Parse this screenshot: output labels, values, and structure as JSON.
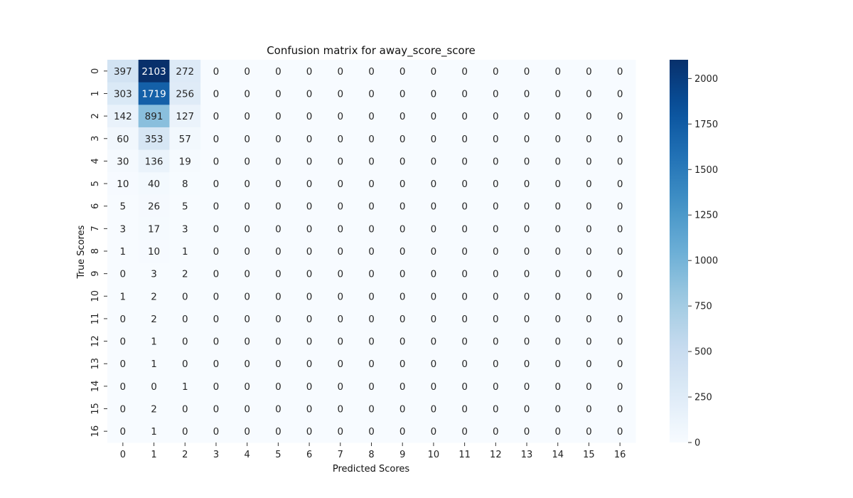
{
  "chart_data": {
    "type": "heatmap",
    "title": "Confusion matrix for away_score_score",
    "xlabel": "Predicted Scores",
    "ylabel": "True Scores",
    "x_categories": [
      "0",
      "1",
      "2",
      "3",
      "4",
      "5",
      "6",
      "7",
      "8",
      "9",
      "10",
      "11",
      "12",
      "13",
      "14",
      "15",
      "16"
    ],
    "y_categories": [
      "0",
      "1",
      "2",
      "3",
      "4",
      "5",
      "6",
      "7",
      "8",
      "9",
      "10",
      "11",
      "12",
      "13",
      "14",
      "15",
      "16"
    ],
    "values": [
      [
        397,
        2103,
        272,
        0,
        0,
        0,
        0,
        0,
        0,
        0,
        0,
        0,
        0,
        0,
        0,
        0,
        0
      ],
      [
        303,
        1719,
        256,
        0,
        0,
        0,
        0,
        0,
        0,
        0,
        0,
        0,
        0,
        0,
        0,
        0,
        0
      ],
      [
        142,
        891,
        127,
        0,
        0,
        0,
        0,
        0,
        0,
        0,
        0,
        0,
        0,
        0,
        0,
        0,
        0
      ],
      [
        60,
        353,
        57,
        0,
        0,
        0,
        0,
        0,
        0,
        0,
        0,
        0,
        0,
        0,
        0,
        0,
        0
      ],
      [
        30,
        136,
        19,
        0,
        0,
        0,
        0,
        0,
        0,
        0,
        0,
        0,
        0,
        0,
        0,
        0,
        0
      ],
      [
        10,
        40,
        8,
        0,
        0,
        0,
        0,
        0,
        0,
        0,
        0,
        0,
        0,
        0,
        0,
        0,
        0
      ],
      [
        5,
        26,
        5,
        0,
        0,
        0,
        0,
        0,
        0,
        0,
        0,
        0,
        0,
        0,
        0,
        0,
        0
      ],
      [
        3,
        17,
        3,
        0,
        0,
        0,
        0,
        0,
        0,
        0,
        0,
        0,
        0,
        0,
        0,
        0,
        0
      ],
      [
        1,
        10,
        1,
        0,
        0,
        0,
        0,
        0,
        0,
        0,
        0,
        0,
        0,
        0,
        0,
        0,
        0
      ],
      [
        0,
        3,
        2,
        0,
        0,
        0,
        0,
        0,
        0,
        0,
        0,
        0,
        0,
        0,
        0,
        0,
        0
      ],
      [
        1,
        2,
        0,
        0,
        0,
        0,
        0,
        0,
        0,
        0,
        0,
        0,
        0,
        0,
        0,
        0,
        0
      ],
      [
        0,
        2,
        0,
        0,
        0,
        0,
        0,
        0,
        0,
        0,
        0,
        0,
        0,
        0,
        0,
        0,
        0
      ],
      [
        0,
        1,
        0,
        0,
        0,
        0,
        0,
        0,
        0,
        0,
        0,
        0,
        0,
        0,
        0,
        0,
        0
      ],
      [
        0,
        1,
        0,
        0,
        0,
        0,
        0,
        0,
        0,
        0,
        0,
        0,
        0,
        0,
        0,
        0,
        0
      ],
      [
        0,
        0,
        1,
        0,
        0,
        0,
        0,
        0,
        0,
        0,
        0,
        0,
        0,
        0,
        0,
        0,
        0
      ],
      [
        0,
        2,
        0,
        0,
        0,
        0,
        0,
        0,
        0,
        0,
        0,
        0,
        0,
        0,
        0,
        0,
        0
      ],
      [
        0,
        1,
        0,
        0,
        0,
        0,
        0,
        0,
        0,
        0,
        0,
        0,
        0,
        0,
        0,
        0,
        0
      ]
    ],
    "colormap": "Blues",
    "color_range": [
      0,
      2103
    ],
    "colorbar_ticks": [
      0,
      250,
      500,
      750,
      1000,
      1250,
      1500,
      1750,
      2000
    ],
    "grid": false,
    "colorbar_position": "right"
  }
}
